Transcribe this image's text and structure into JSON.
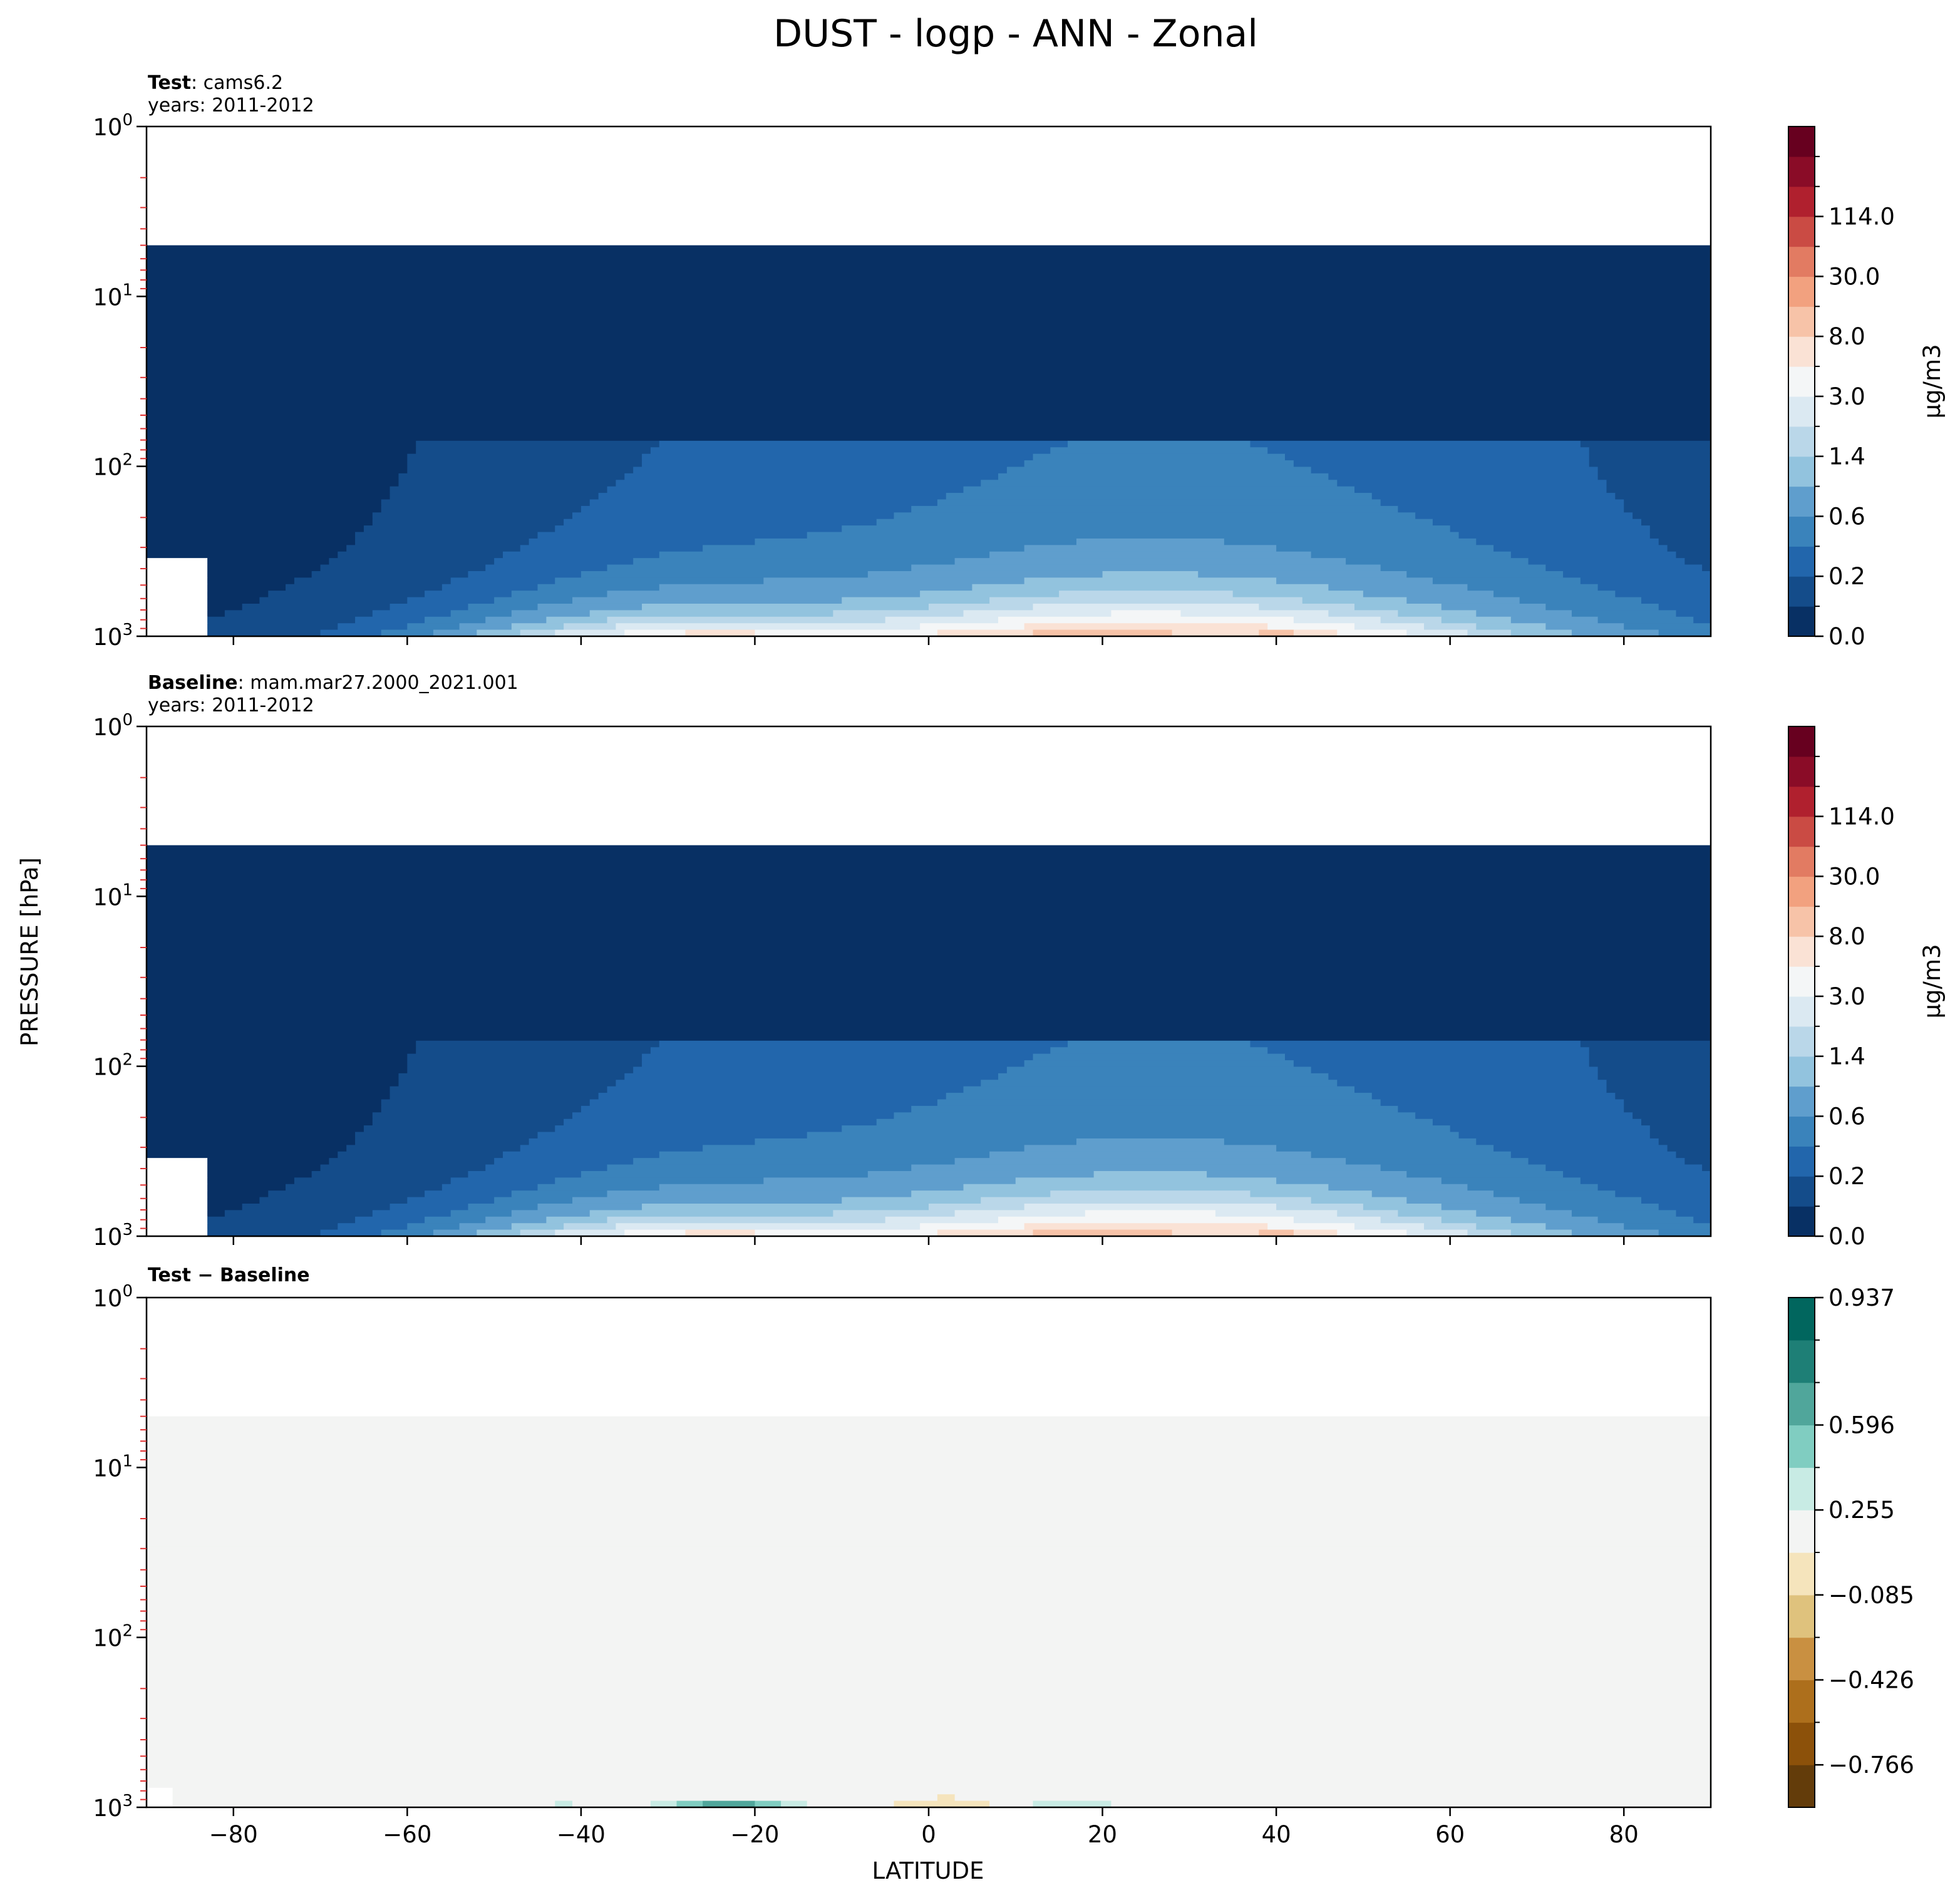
{
  "figure": {
    "title": "DUST - logp - ANN - Zonal",
    "ylabel": "PRESSURE [hPa]",
    "xlabel": "LATITUDE"
  },
  "colors": {
    "rdbu": [
      "#083064",
      "#144c8a",
      "#2266ac",
      "#3a83bb",
      "#5f9ecd",
      "#92c3de",
      "#bad7e9",
      "#dbe9f2",
      "#f4f6f7",
      "#fae2d5",
      "#f7c3a8",
      "#f2a17f",
      "#e27b62",
      "#ca4b44",
      "#b0202e",
      "#8a0c27",
      "#67001f"
    ],
    "brbg": [
      "#633c0a",
      "#8c510a",
      "#ad6f1c",
      "#c99041",
      "#dfc27d",
      "#f5e4bc",
      "#f3f4f3",
      "#c8ebe4",
      "#80cdc1",
      "#50a69b",
      "#1e7f76",
      "#01665e",
      "#003c30"
    ],
    "missing": "#ffffff"
  },
  "chart_data": [
    {
      "type": "heatmap",
      "panel": "test",
      "label_bold": "Test",
      "label_sep": ": ",
      "label_rest": "cams6.2",
      "years": "years: 2011-2012",
      "xlim": [
        -90,
        90
      ],
      "ylim": [
        1000,
        1
      ],
      "yscale": "log",
      "x_ticks": [
        -80,
        -60,
        -40,
        -20,
        0,
        20,
        40,
        60,
        80
      ],
      "y_ticks": [
        {
          "base": "10",
          "exp": "0",
          "value": 1
        },
        {
          "base": "10",
          "exp": "1",
          "value": 10
        },
        {
          "base": "10",
          "exp": "2",
          "value": 100
        },
        {
          "base": "10",
          "exp": "3",
          "value": 1000
        }
      ],
      "model_top_hPa": 5,
      "field": "dust",
      "colorbar": {
        "label": "μg/m3",
        "tick_labels": [
          "0.0",
          "0.2",
          "0.6",
          "1.4",
          "3.0",
          "8.0",
          "30.0",
          "114.0"
        ],
        "tick_bounds": [
          0,
          2,
          4,
          6,
          8,
          10,
          12,
          14
        ],
        "n_colors": 17
      }
    },
    {
      "type": "heatmap",
      "panel": "baseline",
      "label_bold": "Baseline",
      "label_sep": ": ",
      "label_rest": "mam.mar27.2000_2021.001",
      "years": "years: 2011-2012",
      "xlim": [
        -90,
        90
      ],
      "ylim": [
        1000,
        1
      ],
      "yscale": "log",
      "x_ticks": [
        -80,
        -60,
        -40,
        -20,
        0,
        20,
        40,
        60,
        80
      ],
      "y_ticks": [
        {
          "base": "10",
          "exp": "0",
          "value": 1
        },
        {
          "base": "10",
          "exp": "1",
          "value": 10
        },
        {
          "base": "10",
          "exp": "2",
          "value": 100
        },
        {
          "base": "10",
          "exp": "3",
          "value": 1000
        }
      ],
      "model_top_hPa": 5,
      "field": "dust",
      "colorbar": {
        "label": "μg/m3",
        "tick_labels": [
          "0.0",
          "0.2",
          "0.6",
          "1.4",
          "3.0",
          "8.0",
          "30.0",
          "114.0"
        ],
        "tick_bounds": [
          0,
          2,
          4,
          6,
          8,
          10,
          12,
          14
        ],
        "n_colors": 17
      }
    },
    {
      "type": "heatmap",
      "panel": "diff",
      "label_bold": "Test − Baseline",
      "label_sep": "",
      "label_rest": "",
      "years": "",
      "xlim": [
        -90,
        90
      ],
      "ylim": [
        1000,
        1
      ],
      "yscale": "log",
      "x_ticks": [
        -80,
        -60,
        -40,
        -20,
        0,
        20,
        40,
        60,
        80
      ],
      "y_ticks": [
        {
          "base": "10",
          "exp": "0",
          "value": 1
        },
        {
          "base": "10",
          "exp": "1",
          "value": 10
        },
        {
          "base": "10",
          "exp": "2",
          "value": 100
        },
        {
          "base": "10",
          "exp": "3",
          "value": 1000
        }
      ],
      "model_top_hPa": 5,
      "field": "diff",
      "colorbar": {
        "label": "",
        "tick_labels": [
          "−0.766",
          "−0.426",
          "−0.085",
          "0.255",
          "0.596",
          "0.937"
        ],
        "tick_bounds": [
          1,
          3,
          5,
          7,
          9,
          12
        ],
        "n_colors": 12
      }
    }
  ]
}
